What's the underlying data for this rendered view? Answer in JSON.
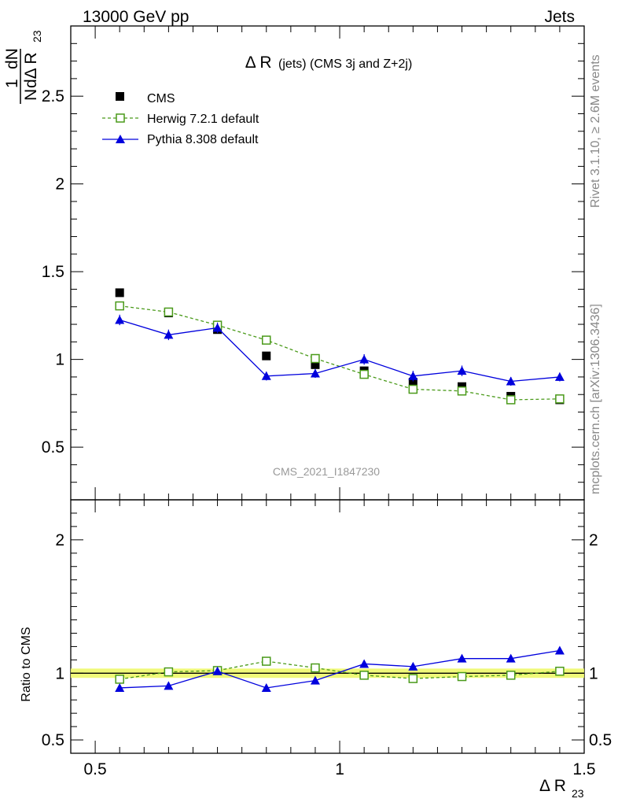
{
  "header": {
    "left": "13000 GeV pp",
    "right": "Jets"
  },
  "side_text": {
    "rivet": "Rivet 3.1.10, ≥ 2.6M events",
    "mcplots": "mcplots.cern.ch [arXiv:1306.3436]"
  },
  "watermark": "CMS_2021_I1847230",
  "plot_title": {
    "main": "Δ R",
    "suffix": "(jets) (CMS 3j and Z+2j)"
  },
  "y_label": {
    "one": "1",
    "dN": "dN",
    "N": "N",
    "dDR": "dΔ R",
    "sub": "23"
  },
  "ratio_label": "Ratio to CMS",
  "x_label": {
    "main": "Δ R",
    "sub": "23"
  },
  "legend": [
    {
      "label": "CMS",
      "color": "#000000",
      "marker": "square-filled"
    },
    {
      "label": "Herwig 7.2.1 default",
      "color": "#4a9a1a",
      "marker": "square-open",
      "dash": true
    },
    {
      "label": "Pythia 8.308 default",
      "color": "#0000dd",
      "marker": "triangle-filled"
    }
  ],
  "chart_data": [
    {
      "type": "scatter",
      "panel": "main",
      "xlim": [
        0.45,
        1.5
      ],
      "ylim": [
        0.2,
        2.9
      ],
      "x": [
        0.55,
        0.65,
        0.75,
        0.85,
        0.95,
        1.05,
        1.15,
        1.25,
        1.35,
        1.45
      ],
      "yticks": [
        0.5,
        1,
        1.5,
        2,
        2.5
      ],
      "series": [
        {
          "name": "CMS",
          "values": [
            1.38,
            1.265,
            1.17,
            1.02,
            0.97,
            0.935,
            0.87,
            0.845,
            0.79,
            0.77
          ],
          "errors": [
            0.01,
            0.01,
            0.01,
            0.01,
            0.01,
            0.01,
            0.01,
            0.01,
            0.01,
            0.01
          ]
        },
        {
          "name": "Herwig 7.2.1 default",
          "values": [
            1.305,
            1.27,
            1.195,
            1.11,
            1.005,
            0.915,
            0.83,
            0.82,
            0.77,
            0.775
          ],
          "errors": [
            0.02,
            0.02,
            0.02,
            0.02,
            0.02,
            0.02,
            0.02,
            0.02,
            0.02,
            0.02
          ]
        },
        {
          "name": "Pythia 8.308 default",
          "values": [
            1.225,
            1.14,
            1.18,
            0.905,
            0.92,
            1.0,
            0.905,
            0.935,
            0.875,
            0.9
          ],
          "errors": [
            0.03,
            0.03,
            0.03,
            0.025,
            0.025,
            0.03,
            0.03,
            0.03,
            0.025,
            0.025
          ]
        }
      ]
    },
    {
      "type": "scatter",
      "panel": "ratio",
      "xlim": [
        0.45,
        1.5
      ],
      "ylim": [
        0.4,
        2.3
      ],
      "x": [
        0.55,
        0.65,
        0.75,
        0.85,
        0.95,
        1.05,
        1.15,
        1.25,
        1.35,
        1.45
      ],
      "xticks": [
        0.5,
        1,
        1.5
      ],
      "yticks": [
        0.5,
        1,
        2
      ],
      "band": [
        0.965,
        1.035
      ],
      "series": [
        {
          "name": "Herwig 7.2.1 default",
          "values": [
            0.955,
            1.01,
            1.02,
            1.09,
            1.04,
            0.985,
            0.96,
            0.975,
            0.985,
            1.015
          ],
          "errors": [
            0.015,
            0.015,
            0.015,
            0.02,
            0.015,
            0.015,
            0.015,
            0.015,
            0.015,
            0.015
          ]
        },
        {
          "name": "Pythia 8.308 default",
          "values": [
            0.89,
            0.905,
            1.015,
            0.89,
            0.945,
            1.07,
            1.05,
            1.11,
            1.11,
            1.17
          ],
          "errors": [
            0.02,
            0.02,
            0.02,
            0.02,
            0.02,
            0.025,
            0.025,
            0.025,
            0.025,
            0.025
          ]
        }
      ]
    }
  ]
}
